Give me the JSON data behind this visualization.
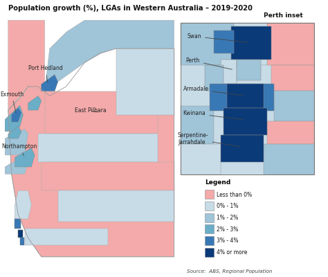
{
  "title": "Population growth (%), LGAs in Western Australia – 2019-2020",
  "source": "Source:  ABS, Regional Population",
  "legend_title": "Legend",
  "legend_items": [
    {
      "label": "Less than 0%",
      "color": "#F4AAAA"
    },
    {
      "label": "0% - 1%",
      "color": "#C8DCE8"
    },
    {
      "label": "1% - 2%",
      "color": "#A0C4D8"
    },
    {
      "label": "2% - 3%",
      "color": "#6AAEC8"
    },
    {
      "label": "3% - 4%",
      "color": "#3878B4"
    },
    {
      "label": "4% or more",
      "color": "#0A3A78"
    }
  ],
  "perth_inset_label": "Perth inset",
  "bg_color": "#FFFFFF",
  "colors": {
    "pink": "#F4AAAA",
    "vlight": "#C8DCE8",
    "light": "#A0C4D8",
    "mid": "#6AAEC8",
    "dark": "#3878B4",
    "vdark": "#0A3A78"
  }
}
